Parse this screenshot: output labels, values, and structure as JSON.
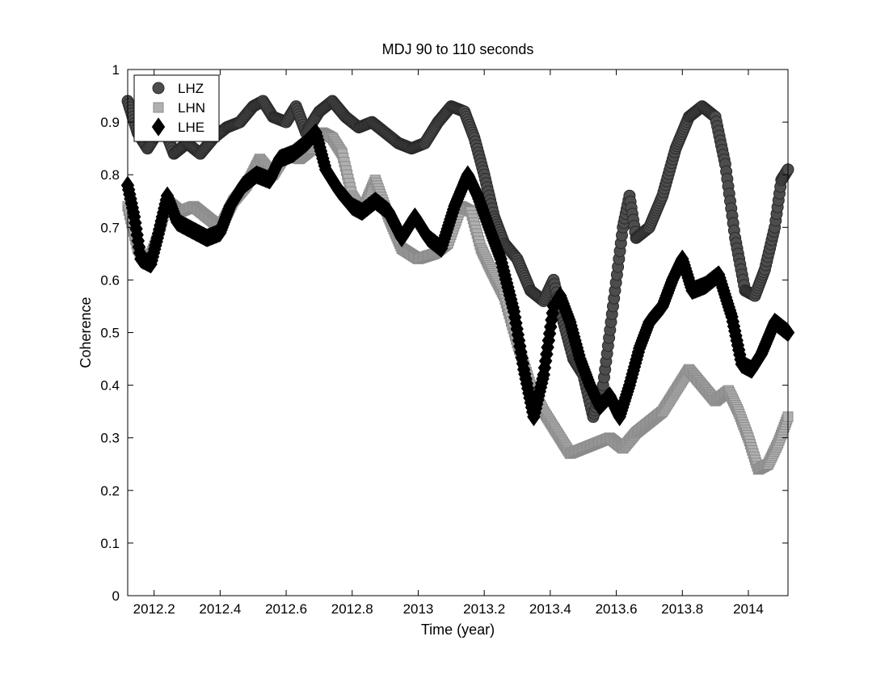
{
  "chart_data": {
    "type": "scatter",
    "title": "MDJ 90 to 110 seconds",
    "xlabel": "Time (year)",
    "ylabel": "Coherence",
    "xlim": [
      2012.12,
      2014.12
    ],
    "ylim": [
      0,
      1
    ],
    "xticks": [
      2012.2,
      2012.4,
      2012.6,
      2012.8,
      2013,
      2013.2,
      2013.4,
      2013.6,
      2013.8,
      2014
    ],
    "xtick_labels": [
      "2012.2",
      "2012.4",
      "2012.6",
      "2012.8",
      "2013",
      "2013.2",
      "2013.4",
      "2013.6",
      "2013.8",
      "2014"
    ],
    "yticks": [
      0,
      0.1,
      0.2,
      0.3,
      0.4,
      0.5,
      0.6,
      0.7,
      0.8,
      0.9,
      1
    ],
    "ytick_labels": [
      "0",
      "0.1",
      "0.2",
      "0.3",
      "0.4",
      "0.5",
      "0.6",
      "0.7",
      "0.8",
      "0.9",
      "1"
    ],
    "grid": false,
    "legend_position": "top-left",
    "series": [
      {
        "name": "LHZ",
        "marker": "circle",
        "color": "#4d4d4d",
        "stroke": "#2a2a2a",
        "keypoints": [
          [
            2012.12,
            0.94
          ],
          [
            2012.15,
            0.88
          ],
          [
            2012.18,
            0.85
          ],
          [
            2012.2,
            0.87
          ],
          [
            2012.23,
            0.89
          ],
          [
            2012.26,
            0.84
          ],
          [
            2012.3,
            0.86
          ],
          [
            2012.34,
            0.84
          ],
          [
            2012.38,
            0.87
          ],
          [
            2012.42,
            0.89
          ],
          [
            2012.46,
            0.9
          ],
          [
            2012.5,
            0.93
          ],
          [
            2012.53,
            0.94
          ],
          [
            2012.56,
            0.91
          ],
          [
            2012.6,
            0.9
          ],
          [
            2012.63,
            0.93
          ],
          [
            2012.66,
            0.88
          ],
          [
            2012.7,
            0.92
          ],
          [
            2012.74,
            0.94
          ],
          [
            2012.78,
            0.91
          ],
          [
            2012.82,
            0.89
          ],
          [
            2012.86,
            0.9
          ],
          [
            2012.9,
            0.88
          ],
          [
            2012.94,
            0.86
          ],
          [
            2012.98,
            0.85
          ],
          [
            2013.02,
            0.86
          ],
          [
            2013.06,
            0.9
          ],
          [
            2013.1,
            0.93
          ],
          [
            2013.14,
            0.92
          ],
          [
            2013.17,
            0.87
          ],
          [
            2013.2,
            0.8
          ],
          [
            2013.23,
            0.72
          ],
          [
            2013.26,
            0.67
          ],
          [
            2013.3,
            0.64
          ],
          [
            2013.34,
            0.58
          ],
          [
            2013.38,
            0.56
          ],
          [
            2013.41,
            0.6
          ],
          [
            2013.44,
            0.52
          ],
          [
            2013.47,
            0.45
          ],
          [
            2013.5,
            0.42
          ],
          [
            2013.53,
            0.34
          ],
          [
            2013.56,
            0.4
          ],
          [
            2013.59,
            0.55
          ],
          [
            2013.62,
            0.7
          ],
          [
            2013.64,
            0.76
          ],
          [
            2013.66,
            0.68
          ],
          [
            2013.7,
            0.7
          ],
          [
            2013.74,
            0.76
          ],
          [
            2013.78,
            0.85
          ],
          [
            2013.82,
            0.91
          ],
          [
            2013.86,
            0.93
          ],
          [
            2013.9,
            0.91
          ],
          [
            2013.93,
            0.82
          ],
          [
            2013.96,
            0.68
          ],
          [
            2013.99,
            0.58
          ],
          [
            2014.02,
            0.57
          ],
          [
            2014.05,
            0.62
          ],
          [
            2014.08,
            0.7
          ],
          [
            2014.1,
            0.79
          ],
          [
            2014.12,
            0.81
          ]
        ]
      },
      {
        "name": "LHN",
        "marker": "square",
        "color": "#b0b0b0",
        "stroke": "#8a8a8a",
        "keypoints": [
          [
            2012.12,
            0.74
          ],
          [
            2012.15,
            0.66
          ],
          [
            2012.18,
            0.63
          ],
          [
            2012.21,
            0.68
          ],
          [
            2012.24,
            0.75
          ],
          [
            2012.28,
            0.73
          ],
          [
            2012.32,
            0.74
          ],
          [
            2012.36,
            0.72
          ],
          [
            2012.4,
            0.7
          ],
          [
            2012.44,
            0.75
          ],
          [
            2012.48,
            0.78
          ],
          [
            2012.52,
            0.83
          ],
          [
            2012.56,
            0.8
          ],
          [
            2012.6,
            0.84
          ],
          [
            2012.64,
            0.83
          ],
          [
            2012.68,
            0.85
          ],
          [
            2012.71,
            0.88
          ],
          [
            2012.74,
            0.87
          ],
          [
            2012.77,
            0.84
          ],
          [
            2012.8,
            0.76
          ],
          [
            2012.83,
            0.73
          ],
          [
            2012.87,
            0.79
          ],
          [
            2012.91,
            0.72
          ],
          [
            2012.95,
            0.66
          ],
          [
            2013.0,
            0.64
          ],
          [
            2013.05,
            0.65
          ],
          [
            2013.09,
            0.67
          ],
          [
            2013.13,
            0.74
          ],
          [
            2013.16,
            0.73
          ],
          [
            2013.19,
            0.66
          ],
          [
            2013.22,
            0.62
          ],
          [
            2013.26,
            0.57
          ],
          [
            2013.3,
            0.48
          ],
          [
            2013.34,
            0.4
          ],
          [
            2013.38,
            0.35
          ],
          [
            2013.42,
            0.31
          ],
          [
            2013.46,
            0.27
          ],
          [
            2013.5,
            0.28
          ],
          [
            2013.54,
            0.29
          ],
          [
            2013.58,
            0.3
          ],
          [
            2013.62,
            0.28
          ],
          [
            2013.66,
            0.31
          ],
          [
            2013.7,
            0.33
          ],
          [
            2013.74,
            0.35
          ],
          [
            2013.78,
            0.39
          ],
          [
            2013.82,
            0.43
          ],
          [
            2013.86,
            0.4
          ],
          [
            2013.9,
            0.37
          ],
          [
            2013.94,
            0.39
          ],
          [
            2013.97,
            0.35
          ],
          [
            2014.0,
            0.3
          ],
          [
            2014.03,
            0.24
          ],
          [
            2014.06,
            0.25
          ],
          [
            2014.09,
            0.29
          ],
          [
            2014.12,
            0.34
          ]
        ]
      },
      {
        "name": "LHE",
        "marker": "diamond",
        "color": "#000000",
        "stroke": "#000000",
        "keypoints": [
          [
            2012.12,
            0.78
          ],
          [
            2012.14,
            0.72
          ],
          [
            2012.16,
            0.64
          ],
          [
            2012.19,
            0.63
          ],
          [
            2012.21,
            0.68
          ],
          [
            2012.24,
            0.76
          ],
          [
            2012.27,
            0.71
          ],
          [
            2012.3,
            0.7
          ],
          [
            2012.33,
            0.69
          ],
          [
            2012.36,
            0.68
          ],
          [
            2012.4,
            0.69
          ],
          [
            2012.43,
            0.74
          ],
          [
            2012.47,
            0.78
          ],
          [
            2012.51,
            0.8
          ],
          [
            2012.55,
            0.79
          ],
          [
            2012.58,
            0.83
          ],
          [
            2012.62,
            0.84
          ],
          [
            2012.66,
            0.86
          ],
          [
            2012.69,
            0.88
          ],
          [
            2012.72,
            0.81
          ],
          [
            2012.76,
            0.77
          ],
          [
            2012.8,
            0.74
          ],
          [
            2012.83,
            0.73
          ],
          [
            2012.87,
            0.75
          ],
          [
            2012.91,
            0.73
          ],
          [
            2012.95,
            0.68
          ],
          [
            2012.99,
            0.72
          ],
          [
            2013.03,
            0.68
          ],
          [
            2013.07,
            0.66
          ],
          [
            2013.11,
            0.74
          ],
          [
            2013.15,
            0.8
          ],
          [
            2013.18,
            0.76
          ],
          [
            2013.22,
            0.69
          ],
          [
            2013.25,
            0.64
          ],
          [
            2013.29,
            0.54
          ],
          [
            2013.32,
            0.43
          ],
          [
            2013.35,
            0.34
          ],
          [
            2013.38,
            0.42
          ],
          [
            2013.41,
            0.55
          ],
          [
            2013.43,
            0.57
          ],
          [
            2013.46,
            0.52
          ],
          [
            2013.49,
            0.45
          ],
          [
            2013.52,
            0.4
          ],
          [
            2013.55,
            0.36
          ],
          [
            2013.58,
            0.38
          ],
          [
            2013.61,
            0.34
          ],
          [
            2013.64,
            0.4
          ],
          [
            2013.67,
            0.47
          ],
          [
            2013.7,
            0.52
          ],
          [
            2013.74,
            0.55
          ],
          [
            2013.77,
            0.6
          ],
          [
            2013.8,
            0.64
          ],
          [
            2013.83,
            0.58
          ],
          [
            2013.87,
            0.59
          ],
          [
            2013.91,
            0.61
          ],
          [
            2013.95,
            0.53
          ],
          [
            2013.98,
            0.44
          ],
          [
            2014.01,
            0.43
          ],
          [
            2014.04,
            0.46
          ],
          [
            2014.08,
            0.52
          ],
          [
            2014.12,
            0.5
          ]
        ]
      }
    ]
  }
}
